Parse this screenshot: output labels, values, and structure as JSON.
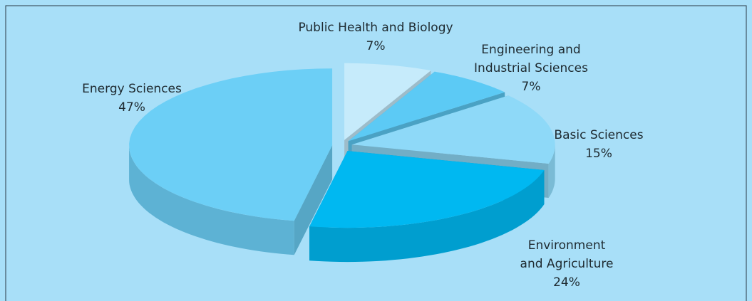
{
  "chart_data": {
    "type": "pie",
    "categories": [
      "Public Health and Biology",
      "Engineering and\nIndustrial Sciences",
      "Basic Sciences",
      "Environment\nand Agriculture",
      "Energy Sciences"
    ],
    "values": [
      7,
      7,
      15,
      24,
      47
    ],
    "value_labels": [
      "7%",
      "7%",
      "15%",
      "24%",
      "47%"
    ],
    "colors": [
      "#c6ebfb",
      "#5ccaf5",
      "#8ed9f8",
      "#00b8f1",
      "#6ccff6"
    ]
  }
}
